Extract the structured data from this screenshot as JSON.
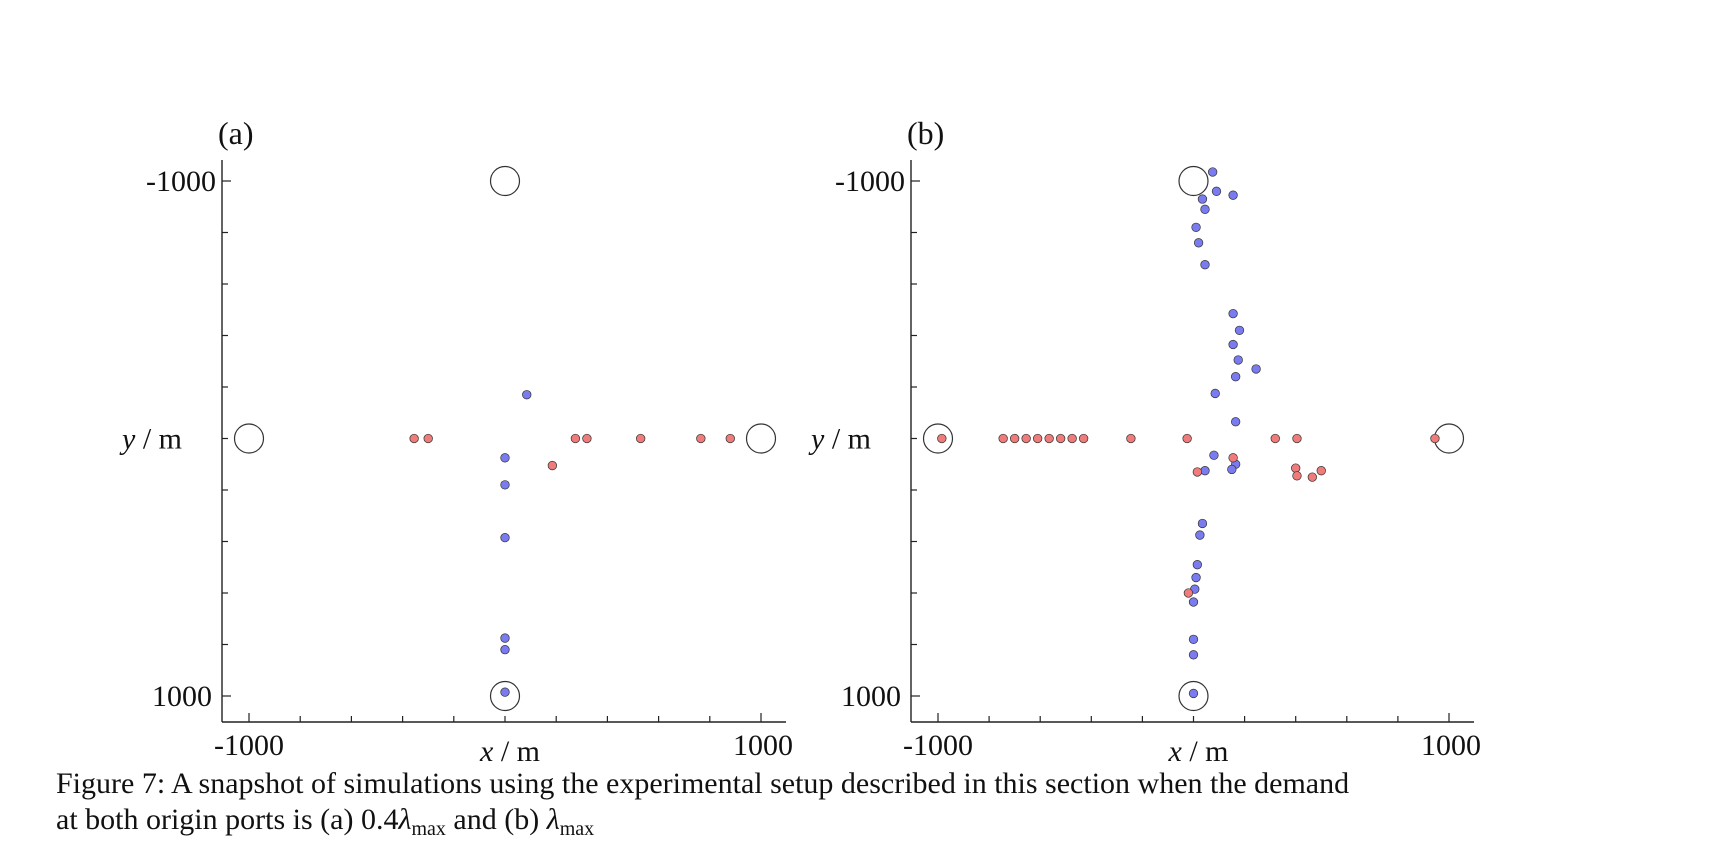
{
  "chart_data": [
    {
      "type": "scatter",
      "panel_label": "(a)",
      "xlabel": "x / m",
      "ylabel": "y / m",
      "xlim": [
        -1000,
        1000
      ],
      "ylim": [
        -1000,
        1000
      ],
      "y_axis_inverted": true,
      "xticks": [
        "-1000",
        "1000"
      ],
      "yticks": [
        "-1000",
        "1000"
      ],
      "ports": [
        {
          "x": 0,
          "y": -1000
        },
        {
          "x": -1000,
          "y": 0
        },
        {
          "x": 1000,
          "y": 0
        },
        {
          "x": 0,
          "y": 1000
        }
      ],
      "series": [
        {
          "color": "#7b7bf0",
          "points": [
            {
              "x": 85,
              "y": -170
            },
            {
              "x": 0,
              "y": 75
            },
            {
              "x": 0,
              "y": 180
            },
            {
              "x": 0,
              "y": 385
            },
            {
              "x": 0,
              "y": 775
            },
            {
              "x": 0,
              "y": 820
            },
            {
              "x": 0,
              "y": 985
            }
          ]
        },
        {
          "color": "#ef7b7b",
          "points": [
            {
              "x": -355,
              "y": 0
            },
            {
              "x": -300,
              "y": 0
            },
            {
              "x": 275,
              "y": 0
            },
            {
              "x": 320,
              "y": 0
            },
            {
              "x": 530,
              "y": 0
            },
            {
              "x": 765,
              "y": 0
            },
            {
              "x": 880,
              "y": 0
            },
            {
              "x": 185,
              "y": 105
            }
          ]
        }
      ]
    },
    {
      "type": "scatter",
      "panel_label": "(b)",
      "xlabel": "x / m",
      "ylabel": "y / m",
      "xlim": [
        -1000,
        1000
      ],
      "ylim": [
        -1000,
        1000
      ],
      "y_axis_inverted": true,
      "xticks": [
        "-1000",
        "1000"
      ],
      "yticks": [
        "-1000",
        "1000"
      ],
      "ports": [
        {
          "x": 0,
          "y": -1000
        },
        {
          "x": -1000,
          "y": 0
        },
        {
          "x": 1000,
          "y": 0
        },
        {
          "x": 0,
          "y": 1000
        }
      ],
      "series": [
        {
          "color": "#7b7bf0",
          "points": [
            {
              "x": 75,
              "y": -1035
            },
            {
              "x": 90,
              "y": -960
            },
            {
              "x": 155,
              "y": -945
            },
            {
              "x": 35,
              "y": -930
            },
            {
              "x": 45,
              "y": -890
            },
            {
              "x": 10,
              "y": -820
            },
            {
              "x": 20,
              "y": -760
            },
            {
              "x": 45,
              "y": -675
            },
            {
              "x": 155,
              "y": -485
            },
            {
              "x": 180,
              "y": -420
            },
            {
              "x": 155,
              "y": -365
            },
            {
              "x": 175,
              "y": -305
            },
            {
              "x": 245,
              "y": -270
            },
            {
              "x": 165,
              "y": -240
            },
            {
              "x": 85,
              "y": -175
            },
            {
              "x": 165,
              "y": -65
            },
            {
              "x": 80,
              "y": 65
            },
            {
              "x": 165,
              "y": 100
            },
            {
              "x": 45,
              "y": 125
            },
            {
              "x": 150,
              "y": 120
            },
            {
              "x": 35,
              "y": 330
            },
            {
              "x": 25,
              "y": 375
            },
            {
              "x": 15,
              "y": 490
            },
            {
              "x": 10,
              "y": 540
            },
            {
              "x": 5,
              "y": 585
            },
            {
              "x": 0,
              "y": 635
            },
            {
              "x": 0,
              "y": 780
            },
            {
              "x": 0,
              "y": 840
            },
            {
              "x": 0,
              "y": 990
            }
          ]
        },
        {
          "color": "#ef7b7b",
          "points": [
            {
              "x": -985,
              "y": 0
            },
            {
              "x": -745,
              "y": 0
            },
            {
              "x": -700,
              "y": 0
            },
            {
              "x": -655,
              "y": 0
            },
            {
              "x": -610,
              "y": 0
            },
            {
              "x": -565,
              "y": 0
            },
            {
              "x": -520,
              "y": 0
            },
            {
              "x": -475,
              "y": 0
            },
            {
              "x": -430,
              "y": 0
            },
            {
              "x": -245,
              "y": 0
            },
            {
              "x": -25,
              "y": 0
            },
            {
              "x": 320,
              "y": 0
            },
            {
              "x": 405,
              "y": 0
            },
            {
              "x": 945,
              "y": 0
            },
            {
              "x": 155,
              "y": 75
            },
            {
              "x": 15,
              "y": 130
            },
            {
              "x": 400,
              "y": 115
            },
            {
              "x": 405,
              "y": 145
            },
            {
              "x": 465,
              "y": 150
            },
            {
              "x": 500,
              "y": 125
            },
            {
              "x": -20,
              "y": 600
            }
          ]
        }
      ]
    }
  ],
  "caption": {
    "prefix": "Figure 7: A snapshot of simulations using the experimental setup described in this section when the demand",
    "line2_a": "at both origin ports is (a) 0.4",
    "lambda": "λ",
    "sub": "max",
    "line2_b": " and (b) "
  }
}
